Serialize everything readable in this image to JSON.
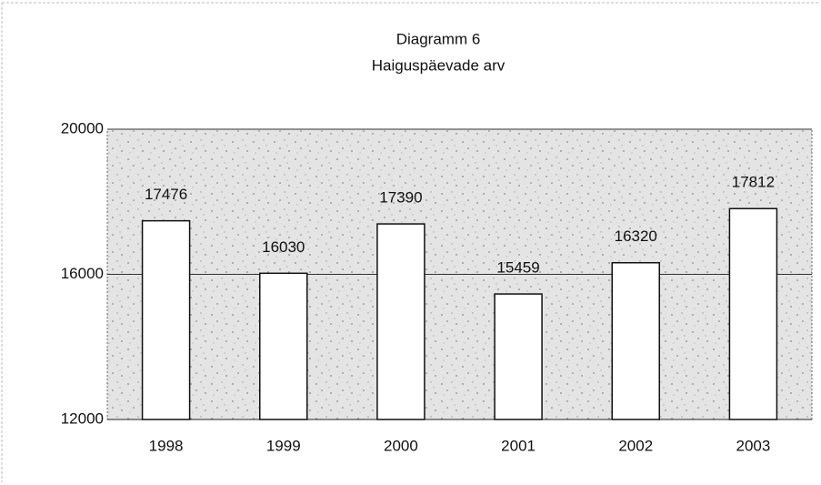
{
  "chart_data": {
    "type": "bar",
    "title": "Diagramm 6",
    "subtitle": "Haiguspäevade arv",
    "categories": [
      "1998",
      "1999",
      "2000",
      "2001",
      "2002",
      "2003"
    ],
    "values": [
      17476,
      16030,
      17390,
      15459,
      16320,
      17812
    ],
    "color": "#ffffff",
    "ylim": [
      12000,
      20000
    ],
    "yticks": [
      12000,
      16000,
      20000
    ],
    "grid": true
  }
}
